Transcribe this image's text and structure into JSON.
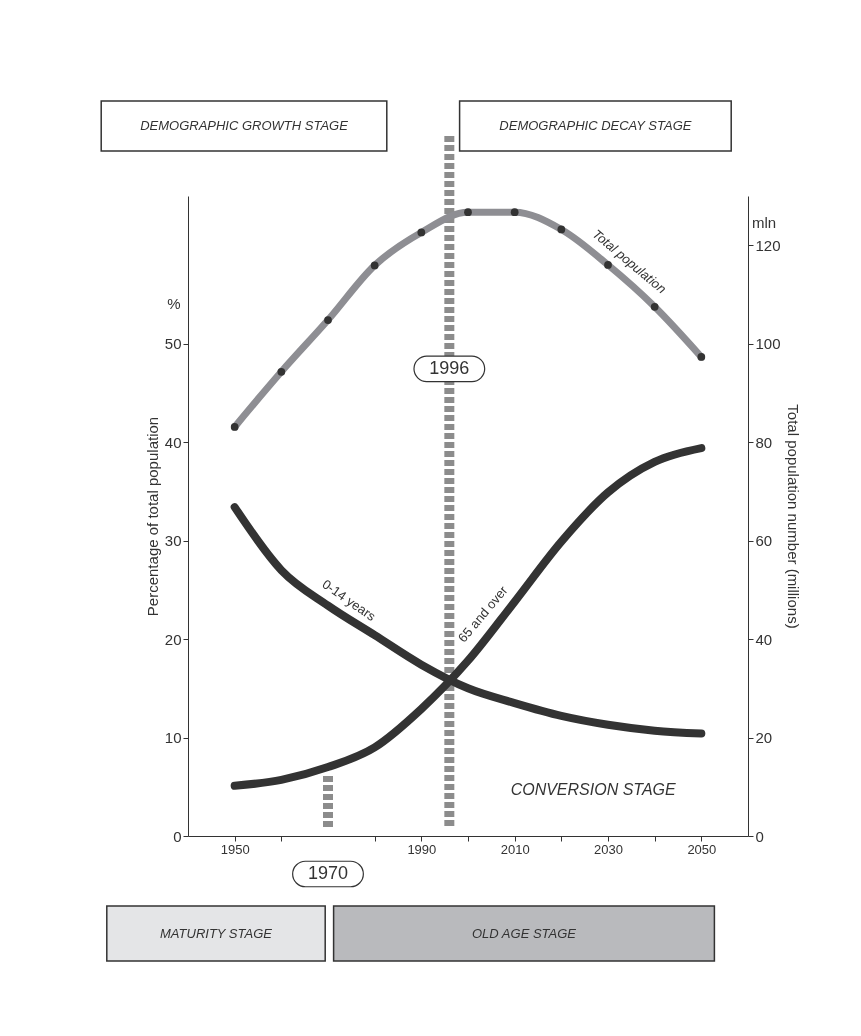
{
  "chart_data": {
    "type": "line",
    "ylabel": "Percentage of total population",
    "y2label": "Total population number (millions)",
    "x": [
      1950,
      1960,
      1970,
      1980,
      1990,
      2000,
      2010,
      2020,
      2030,
      2040,
      2050
    ],
    "xlim": [
      1940,
      2060
    ],
    "xticks": [
      1950,
      {
        "value": 1960,
        "label": null
      },
      {
        "value": 1980,
        "label": null
      },
      1990,
      {
        "value": 2000,
        "label": null
      },
      2010,
      {
        "value": 2020,
        "label": null
      },
      2030,
      {
        "value": 2040,
        "label": null
      },
      2050
    ],
    "ylim": [
      0,
      65
    ],
    "yticks": [
      0,
      10,
      20,
      30,
      40,
      50
    ],
    "y2lim": [
      0,
      130
    ],
    "y2ticks": [
      0,
      20,
      40,
      60,
      80,
      100,
      120
    ],
    "series": [
      {
        "name": "Total population",
        "color": "#8e8e93",
        "axis": "y2",
        "marker": "circle",
        "values": [
          83.1,
          94.3,
          104.8,
          115.9,
          122.6,
          126.7,
          126.7,
          123.2,
          116.0,
          107.5,
          97.3
        ]
      },
      {
        "name": "0-14 years",
        "color": "#333333",
        "values": [
          33.4,
          27.0,
          23.4,
          20.4,
          17.4,
          15.0,
          13.5,
          12.2,
          11.3,
          10.7,
          10.4
        ]
      },
      {
        "name": "65 and over",
        "color": "#333333",
        "values": [
          5.1,
          5.7,
          7.0,
          9.0,
          12.9,
          17.8,
          23.8,
          29.9,
          34.9,
          38.0,
          39.4
        ]
      }
    ],
    "ref_lines": [
      {
        "axis": "x",
        "value": 1970,
        "label": "1970",
        "color": "#8c8c8c",
        "line_style": "dashed"
      },
      {
        "axis": "x",
        "value": 1996,
        "label": "1996",
        "color": "#8c8c8c",
        "line_style": "dashed"
      }
    ],
    "annotations": [
      "DEMOGRAPHIC GROWTH STAGE",
      "DEMOGRAPHIC DECAY STAGE",
      "CONVERSION STAGE",
      "MATURITY STAGE",
      "OLD AGE STAGE",
      "%",
      "mln"
    ],
    "grid": false
  }
}
